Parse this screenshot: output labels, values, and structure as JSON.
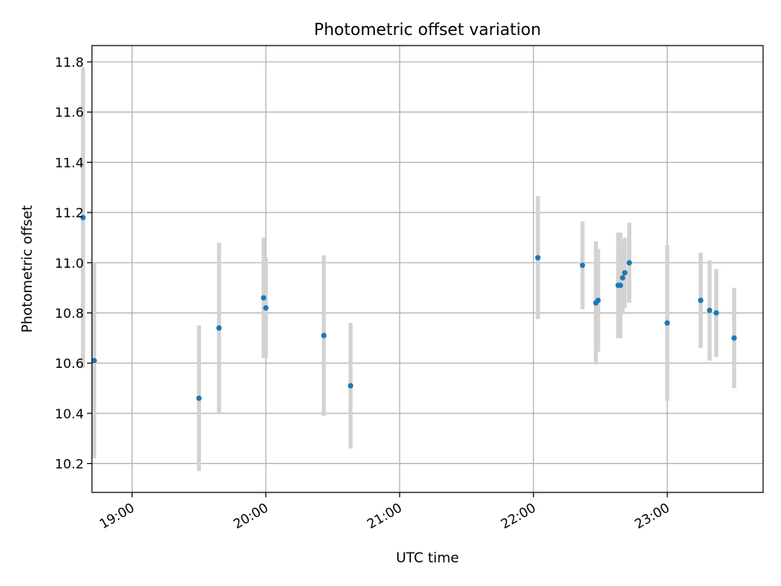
{
  "chart_data": {
    "type": "scatter",
    "title": "Photometric offset variation",
    "xlabel": "UTC time",
    "ylabel": "Photometric offset",
    "x_is_time": true,
    "xlim": [
      "18:42",
      "23:43"
    ],
    "ylim": [
      10.085,
      11.865
    ],
    "x_ticks": [
      "19:00",
      "20:00",
      "21:00",
      "22:00",
      "23:00"
    ],
    "y_ticks": [
      10.2,
      10.4,
      10.6,
      10.8,
      11.0,
      11.2,
      11.4,
      11.6,
      11.8
    ],
    "y_tick_labels": [
      "10.2",
      "10.4",
      "10.6",
      "10.8",
      "11.0",
      "11.2",
      "11.4",
      "11.6",
      "11.8"
    ],
    "grid": true,
    "point_color": "#1f77b4",
    "errorbar_color": "#d3d3d3",
    "points": [
      {
        "x": "18:38",
        "y": 11.18,
        "yerr": 0.6
      },
      {
        "x": "18:43",
        "y": 10.61,
        "yerr": 0.39
      },
      {
        "x": "19:30",
        "y": 10.46,
        "yerr": 0.29
      },
      {
        "x": "19:39",
        "y": 10.74,
        "yerr": 0.34
      },
      {
        "x": "19:59",
        "y": 10.86,
        "yerr": 0.24
      },
      {
        "x": "20:00",
        "y": 10.82,
        "yerr": 0.2
      },
      {
        "x": "20:26",
        "y": 10.71,
        "yerr": 0.32
      },
      {
        "x": "20:38",
        "y": 10.51,
        "yerr": 0.25
      },
      {
        "x": "22:02",
        "y": 11.02,
        "yerr": 0.245
      },
      {
        "x": "22:22",
        "y": 10.99,
        "yerr": 0.175
      },
      {
        "x": "22:28",
        "y": 10.84,
        "yerr": 0.245
      },
      {
        "x": "22:29",
        "y": 10.85,
        "yerr": 0.205
      },
      {
        "x": "22:38",
        "y": 10.91,
        "yerr": 0.21
      },
      {
        "x": "22:39",
        "y": 10.91,
        "yerr": 0.21
      },
      {
        "x": "22:40",
        "y": 10.94,
        "yerr": 0.145
      },
      {
        "x": "22:41",
        "y": 10.96,
        "yerr": 0.14
      },
      {
        "x": "22:43",
        "y": 11.0,
        "yerr": 0.16
      },
      {
        "x": "23:00",
        "y": 10.76,
        "yerr": 0.31
      },
      {
        "x": "23:15",
        "y": 10.85,
        "yerr": 0.19
      },
      {
        "x": "23:19",
        "y": 10.81,
        "yerr": 0.2
      },
      {
        "x": "23:22",
        "y": 10.8,
        "yerr": 0.175
      },
      {
        "x": "23:30",
        "y": 10.7,
        "yerr": 0.2
      }
    ]
  }
}
